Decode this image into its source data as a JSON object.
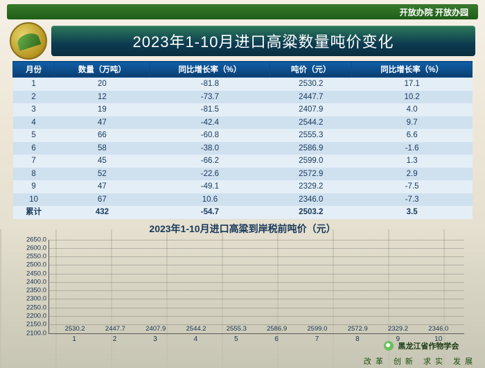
{
  "topbar": {
    "text": "开放办院  开放办园"
  },
  "title": "2023年1-10月进口高粱数量吨价变化",
  "table": {
    "columns": [
      "月份",
      "数量（万吨）",
      "同比增长率（%）",
      "吨价（元）",
      "同比增长率（%）"
    ],
    "rows": [
      [
        "1",
        "20",
        "-81.8",
        "2530.2",
        "17.1"
      ],
      [
        "2",
        "12",
        "-73.7",
        "2447.7",
        "10.2"
      ],
      [
        "3",
        "19",
        "-81.5",
        "2407.9",
        "4.0"
      ],
      [
        "4",
        "47",
        "-42.4",
        "2544.2",
        "9.7"
      ],
      [
        "5",
        "66",
        "-60.8",
        "2555.3",
        "6.6"
      ],
      [
        "6",
        "58",
        "-38.0",
        "2586.9",
        "-1.6"
      ],
      [
        "7",
        "45",
        "-66.2",
        "2599.0",
        "1.3"
      ],
      [
        "8",
        "52",
        "-22.6",
        "2572.9",
        "2.9"
      ],
      [
        "9",
        "47",
        "-49.1",
        "2329.2",
        "-7.5"
      ],
      [
        "10",
        "67",
        "10.6",
        "2346.0",
        "-7.3"
      ],
      [
        "累计",
        "432",
        "-54.7",
        "2503.2",
        "3.5"
      ]
    ]
  },
  "chart": {
    "type": "bar",
    "title": "2023年1-10月进口高粱到岸税前吨价（元）",
    "categories": [
      "1",
      "2",
      "3",
      "4",
      "5",
      "6",
      "7",
      "8",
      "9",
      "10"
    ],
    "values": [
      2530.2,
      2447.7,
      2407.9,
      2544.2,
      2555.3,
      2586.9,
      2599.0,
      2572.9,
      2329.2,
      2346.0
    ],
    "value_labels": [
      "2530.2",
      "2447.7",
      "2407.9",
      "2544.2",
      "2555.3",
      "2586.9",
      "2599.0",
      "2572.9",
      "2329.2",
      "2346.0"
    ],
    "ylim": [
      2100,
      2650
    ],
    "ytick_step": 50,
    "bar_color": "#e02a16",
    "grid_color": "rgba(100,100,100,.35)",
    "label_fontsize": 9.5,
    "title_fontsize": 14,
    "title_color": "#18395a",
    "axis_color": "#555"
  },
  "footer": {
    "source": "黑龙江省作物学会",
    "motto": "改革 创新 求实 发展"
  }
}
